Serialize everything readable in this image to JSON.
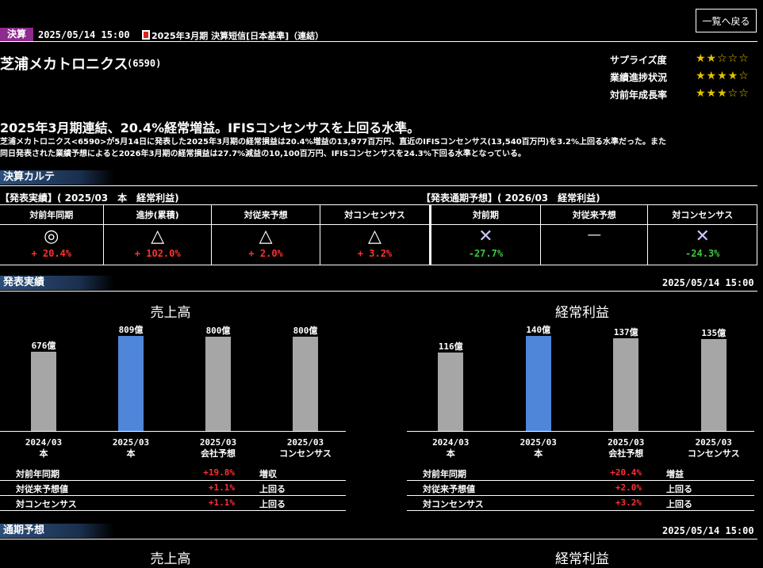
{
  "header": {
    "tag": "決算",
    "datetime": "2025/05/14 15:00",
    "doc_title": "2025年3月期 決算短信[日本基準]（連結）",
    "back_button": "一覧へ戻る"
  },
  "company": {
    "name": "芝浦メカトロニクス",
    "code": "(6590)"
  },
  "ratings": [
    {
      "label": "サプライズ度",
      "stars": "★★☆☆☆"
    },
    {
      "label": "業績進捗状況",
      "stars": "★★★★☆"
    },
    {
      "label": "対前年成長率",
      "stars": "★★★☆☆"
    }
  ],
  "headline": "2025年3月期連結、20.4%経常増益。IFISコンセンサスを上回る水準。",
  "summary_line1": "芝浦メカトロニクス<6590>が5月14日に発表した2025年3月期の経常損益は20.4%増益の13,977百万円、直近のIFISコンセンサス(13,540百万円)を3.2%上回る水準だった。また",
  "summary_line2": "同日発表された業績予想によると2026年3月期の経常損益は27.7%減益の10,100百万円、IFISコンセンサスを24.3%下回る水準となっている。",
  "karte": {
    "title": "決算カルテ",
    "left_caption": "【発表実績】( 2025/03　本　経常利益)",
    "right_caption": "【発表通期予想】( 2026/03　経常利益)",
    "columns": [
      {
        "header": "対前年同期",
        "symbol": "◎",
        "value": "+ 20.4%",
        "color": "red"
      },
      {
        "header": "進捗(累積)",
        "symbol": "△",
        "value": "+ 102.0%",
        "color": "red"
      },
      {
        "header": "対従来予想",
        "symbol": "△",
        "value": "+ 2.0%",
        "color": "red"
      },
      {
        "header": "対コンセンサス",
        "symbol": "△",
        "value": "+ 3.2%",
        "color": "red"
      },
      {
        "header": "対前期",
        "symbol": "✕",
        "value": "-27.7%",
        "color": "green"
      },
      {
        "header": "対従来予想",
        "symbol": "－",
        "value": "",
        "color": "white"
      },
      {
        "header": "対コンセンサス",
        "symbol": "✕",
        "value": "-24.3%",
        "color": "green"
      }
    ]
  },
  "results": {
    "title": "発表実績",
    "datetime": "2025/05/14 15:00",
    "charts": [
      {
        "title": "売上高",
        "bars": [
          {
            "label": "676億",
            "value": 676,
            "x1": "2024/03",
            "x2": "本",
            "highlight": false
          },
          {
            "label": "809億",
            "value": 809,
            "x1": "2025/03",
            "x2": "本",
            "highlight": true
          },
          {
            "label": "800億",
            "value": 800,
            "x1": "2025/03",
            "x2": "会社予想",
            "highlight": false
          },
          {
            "label": "800億",
            "value": 800,
            "x1": "2025/03",
            "x2": "コンセンサス",
            "highlight": false
          }
        ],
        "metrics": [
          {
            "name": "対前年同期",
            "value": "+19.8%",
            "note": "増収"
          },
          {
            "name": "対従来予想値",
            "value": "+1.1%",
            "note": "上回る"
          },
          {
            "name": "対コンセンサス",
            "value": "+1.1%",
            "note": "上回る"
          }
        ]
      },
      {
        "title": "経常利益",
        "bars": [
          {
            "label": "116億",
            "value": 116,
            "x1": "2024/03",
            "x2": "本",
            "highlight": false
          },
          {
            "label": "140億",
            "value": 140,
            "x1": "2025/03",
            "x2": "本",
            "highlight": true
          },
          {
            "label": "137億",
            "value": 137,
            "x1": "2025/03",
            "x2": "会社予想",
            "highlight": false
          },
          {
            "label": "135億",
            "value": 135,
            "x1": "2025/03",
            "x2": "コンセンサス",
            "highlight": false
          }
        ],
        "metrics": [
          {
            "name": "対前年同期",
            "value": "+20.4%",
            "note": "増益"
          },
          {
            "name": "対従来予想値",
            "value": "+2.0%",
            "note": "上回る"
          },
          {
            "name": "対コンセンサス",
            "value": "+3.2%",
            "note": "上回る"
          }
        ]
      }
    ]
  },
  "forecast": {
    "title": "通期予想",
    "datetime": "2025/05/14 15:00",
    "chart_titles": [
      "売上高",
      "経常利益"
    ]
  },
  "colors": {
    "bar_gray": "#a6a6a6",
    "bar_blue": "#4f86d9",
    "positive": "#ff3030",
    "negative": "#3dc83d",
    "tag": "#8f2a8f"
  }
}
